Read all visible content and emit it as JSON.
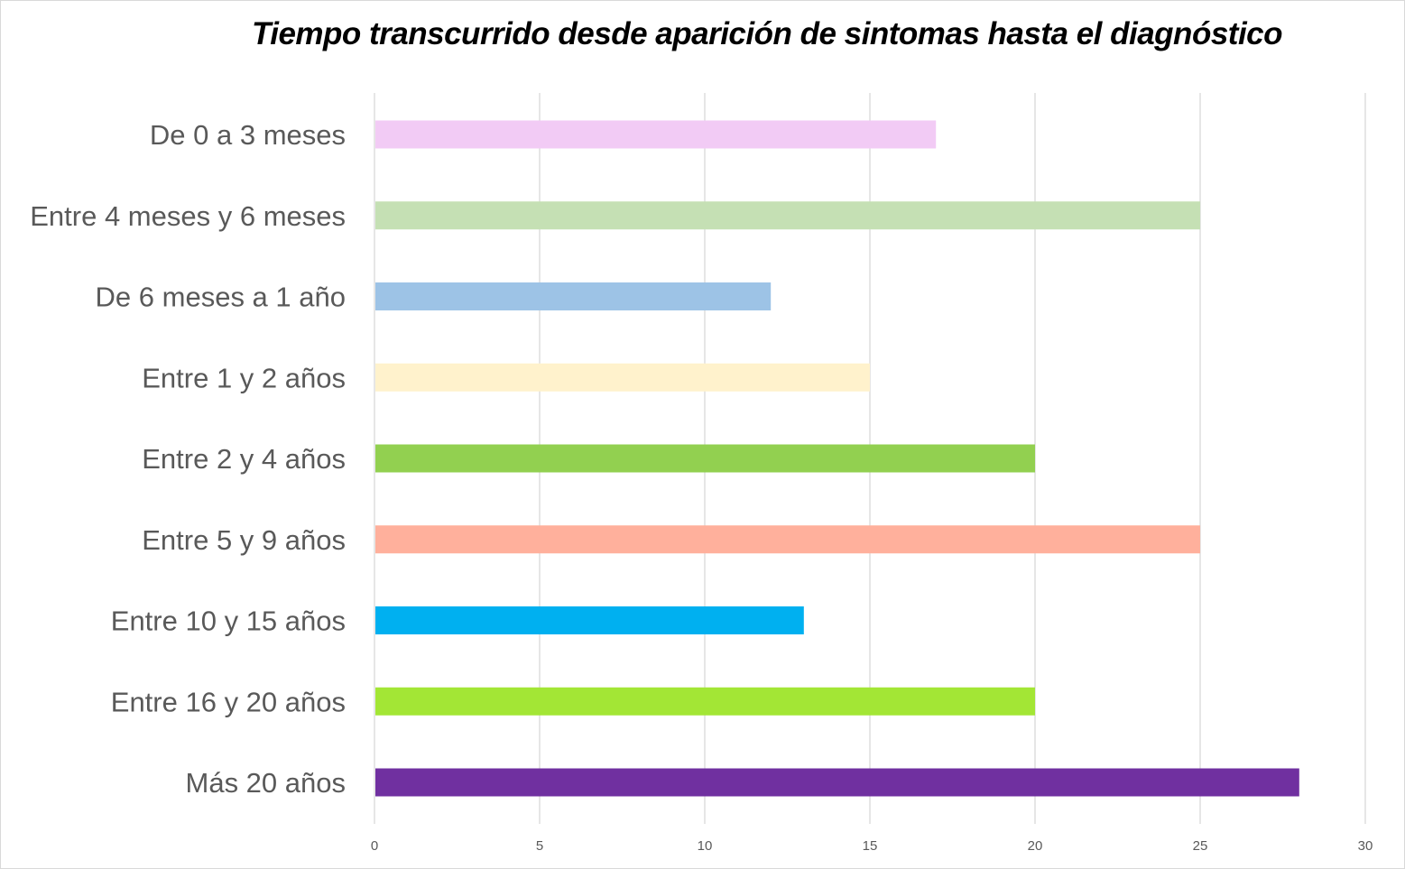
{
  "chart_data": {
    "type": "bar",
    "orientation": "horizontal",
    "title": "Tiempo transcurrido desde aparición de sintomas hasta el diagnóstico",
    "xlabel": "",
    "ylabel": "",
    "xlim": [
      0,
      30
    ],
    "x_ticks": [
      "0",
      "5",
      "10",
      "15",
      "20",
      "25",
      "30"
    ],
    "grid": true,
    "legend": "none",
    "categories": [
      "De 0 a 3 meses",
      "Entre 4 meses y 6 meses",
      "De 6 meses a 1 año",
      "Entre 1 y 2 años",
      "Entre 2 y 4 años",
      "Entre 5 y 9 años",
      "Entre 10 y 15 años",
      "Entre 16 y 20 años",
      "Más 20 años"
    ],
    "values": [
      17,
      25,
      12,
      15,
      20,
      25,
      13,
      20,
      28
    ],
    "colors": [
      "#f2cbf5",
      "#c5e0b4",
      "#9dc3e6",
      "#fff2cc",
      "#92d050",
      "#ffb09c",
      "#00b0f0",
      "#a3e635",
      "#7030a0"
    ]
  }
}
